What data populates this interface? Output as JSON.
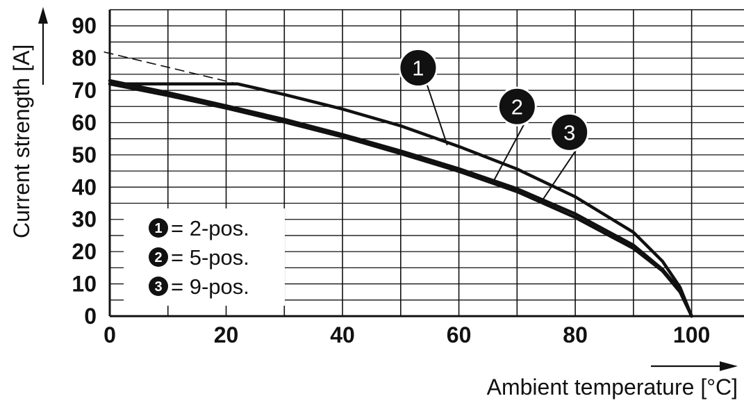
{
  "chart_data": {
    "type": "line",
    "xlabel": "Ambient temperature [°C]",
    "ylabel": "Current strength [A]",
    "xlim": [
      0,
      109
    ],
    "ylim": [
      0,
      95
    ],
    "x_ticks": [
      0,
      20,
      40,
      60,
      80,
      100
    ],
    "y_ticks": [
      0,
      10,
      20,
      30,
      40,
      50,
      60,
      70,
      80,
      90
    ],
    "grid": true,
    "x_minor_step": 10,
    "y_minor_step": 5,
    "series": [
      {
        "name": "1",
        "points": [
          [
            0,
            72
          ],
          [
            22,
            72
          ],
          [
            30,
            68.7
          ],
          [
            40,
            64.2
          ],
          [
            50,
            59
          ],
          [
            60,
            52.6
          ],
          [
            70,
            45.6
          ],
          [
            80,
            37
          ],
          [
            90,
            26
          ],
          [
            95,
            17
          ],
          [
            98,
            9
          ],
          [
            100,
            0
          ]
        ],
        "color": "#111111"
      },
      {
        "name": "2",
        "points": [
          [
            0,
            73
          ],
          [
            10,
            69.3
          ],
          [
            20,
            65.2
          ],
          [
            30,
            61
          ],
          [
            40,
            56.3
          ],
          [
            50,
            51.2
          ],
          [
            60,
            45.7
          ],
          [
            70,
            39.5
          ],
          [
            80,
            31.7
          ],
          [
            90,
            22
          ],
          [
            95,
            14.5
          ],
          [
            98,
            8
          ],
          [
            100,
            0
          ]
        ],
        "color": "#111111"
      },
      {
        "name": "3",
        "points": [
          [
            0,
            72
          ],
          [
            10,
            68.4
          ],
          [
            20,
            64.5
          ],
          [
            30,
            60.2
          ],
          [
            40,
            55.6
          ],
          [
            50,
            50.4
          ],
          [
            60,
            44.9
          ],
          [
            70,
            38.6
          ],
          [
            80,
            30.6
          ],
          [
            90,
            21
          ],
          [
            95,
            14
          ],
          [
            98,
            7.5
          ],
          [
            100,
            0
          ]
        ],
        "color": "#111111"
      }
    ],
    "extrapolation": {
      "points": [
        [
          -1,
          81.9
        ],
        [
          22,
          72
        ]
      ],
      "dashed": true
    },
    "callouts": [
      {
        "label": "1",
        "at": [
          53,
          77
        ],
        "target": [
          58,
          53
        ]
      },
      {
        "label": "2",
        "at": [
          70,
          65
        ],
        "target": [
          66,
          42
        ]
      },
      {
        "label": "3",
        "at": [
          79,
          57
        ],
        "target": [
          74,
          35
        ]
      }
    ],
    "legend": {
      "placement": "bottom-left",
      "entries": [
        {
          "badge": "1",
          "text": "= 2-pos."
        },
        {
          "badge": "2",
          "text": "= 5-pos."
        },
        {
          "badge": "3",
          "text": "= 9-pos."
        }
      ]
    }
  }
}
